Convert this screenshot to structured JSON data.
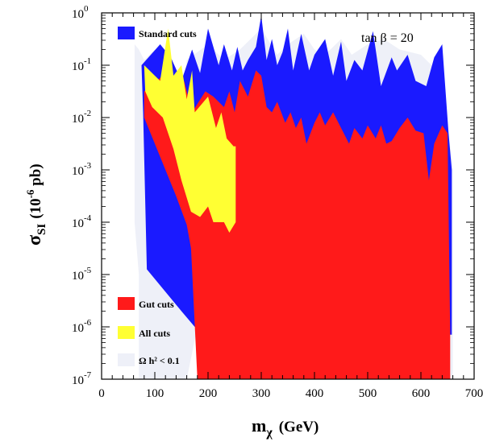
{
  "chart_data": {
    "type": "area",
    "xlabel_main": "m",
    "xlabel_sub": "χ",
    "xlabel_unit": "(GeV)",
    "ylabel_main": "σ",
    "ylabel_sub": "SI",
    "ylabel_unit_pre": "(10",
    "ylabel_unit_exp": "-6",
    "ylabel_unit_post": " pb)",
    "annotation": "tan β = 20",
    "xlim": [
      0,
      700
    ],
    "ylim_log10": [
      -7,
      0
    ],
    "yscale": "log",
    "x_ticks": [
      0,
      100,
      200,
      300,
      400,
      500,
      600,
      700
    ],
    "y_tick_exponents": [
      -7,
      -6,
      -5,
      -4,
      -3,
      -2,
      -1,
      0
    ],
    "y_tick_base": "10",
    "legend": [
      {
        "name": "Standard cuts",
        "color": "#1a1aff"
      },
      {
        "name": "Gut cuts",
        "color": "#ff1a1a"
      },
      {
        "name": "All cuts",
        "color": "#ffff33"
      },
      {
        "name": "Ω h² < 0.1",
        "color": "#eef0f8"
      }
    ],
    "series": [
      {
        "name": "Ω h² < 0.1",
        "color": "#eef0f8",
        "points": [
          [
            62,
            -0.6
          ],
          [
            70,
            -0.7
          ],
          [
            80,
            -0.9
          ],
          [
            100,
            -0.7
          ],
          [
            120,
            -1.0
          ],
          [
            150,
            -1.5
          ],
          [
            160,
            -0.9
          ],
          [
            200,
            -0.6
          ],
          [
            230,
            -0.9
          ],
          [
            260,
            -0.7
          ],
          [
            300,
            -0.3
          ],
          [
            330,
            -0.8
          ],
          [
            350,
            -0.6
          ],
          [
            380,
            -0.4
          ],
          [
            400,
            -0.7
          ],
          [
            420,
            -0.8
          ],
          [
            450,
            -0.5
          ],
          [
            470,
            -0.8
          ],
          [
            500,
            -0.6
          ],
          [
            530,
            -0.5
          ],
          [
            560,
            -0.7
          ],
          [
            600,
            -0.8
          ],
          [
            640,
            -1.2
          ],
          [
            660,
            -3.0
          ],
          [
            660,
            -7.0
          ],
          [
            590,
            -7.0
          ],
          [
            560,
            -6.5
          ],
          [
            520,
            -7.0
          ],
          [
            265,
            -7.0
          ],
          [
            190,
            -5.5
          ],
          [
            160,
            -7.0
          ],
          [
            70,
            -7.0
          ],
          [
            70,
            -5.0
          ],
          [
            62,
            -4.0
          ]
        ]
      },
      {
        "name": "Standard cuts",
        "color": "#1a1aff",
        "points": [
          [
            75,
            -1.0
          ],
          [
            110,
            -0.6
          ],
          [
            130,
            -0.85
          ],
          [
            150,
            -1.3
          ],
          [
            170,
            -0.7
          ],
          [
            185,
            -1.15
          ],
          [
            200,
            -0.3
          ],
          [
            220,
            -1.0
          ],
          [
            230,
            -0.6
          ],
          [
            245,
            -1.1
          ],
          [
            255,
            -0.65
          ],
          [
            265,
            -1.1
          ],
          [
            275,
            -0.9
          ],
          [
            290,
            -0.65
          ],
          [
            300,
            -0.05
          ],
          [
            310,
            -0.9
          ],
          [
            320,
            -0.5
          ],
          [
            330,
            -1.0
          ],
          [
            340,
            -0.75
          ],
          [
            350,
            -0.3
          ],
          [
            360,
            -1.1
          ],
          [
            375,
            -0.4
          ],
          [
            390,
            -1.1
          ],
          [
            400,
            -0.8
          ],
          [
            420,
            -0.5
          ],
          [
            435,
            -1.2
          ],
          [
            450,
            -0.55
          ],
          [
            460,
            -1.3
          ],
          [
            475,
            -0.9
          ],
          [
            490,
            -1.1
          ],
          [
            510,
            -0.35
          ],
          [
            525,
            -1.4
          ],
          [
            545,
            -0.85
          ],
          [
            555,
            -1.1
          ],
          [
            575,
            -0.8
          ],
          [
            590,
            -1.3
          ],
          [
            610,
            -1.4
          ],
          [
            625,
            -0.85
          ],
          [
            640,
            -0.6
          ],
          [
            652,
            -2.3
          ],
          [
            658,
            -3.0
          ],
          [
            658,
            -6.15
          ],
          [
            175,
            -6.0
          ],
          [
            150,
            -5.7
          ],
          [
            85,
            -4.9
          ],
          [
            78,
            -1.9
          ]
        ]
      },
      {
        "name": "Gut cuts",
        "color": "#ff1a1a",
        "points": [
          [
            80,
            -1.5
          ],
          [
            115,
            -1.2
          ],
          [
            140,
            -1.6
          ],
          [
            155,
            -1.3
          ],
          [
            170,
            -1.9
          ],
          [
            195,
            -1.5
          ],
          [
            210,
            -1.6
          ],
          [
            230,
            -1.8
          ],
          [
            240,
            -1.5
          ],
          [
            250,
            -1.9
          ],
          [
            260,
            -1.3
          ],
          [
            275,
            -1.6
          ],
          [
            290,
            -1.1
          ],
          [
            300,
            -1.2
          ],
          [
            310,
            -1.8
          ],
          [
            320,
            -1.9
          ],
          [
            330,
            -1.7
          ],
          [
            345,
            -2.1
          ],
          [
            355,
            -1.9
          ],
          [
            365,
            -2.2
          ],
          [
            375,
            -2.0
          ],
          [
            385,
            -2.5
          ],
          [
            400,
            -2.1
          ],
          [
            410,
            -1.9
          ],
          [
            420,
            -2.15
          ],
          [
            435,
            -1.9
          ],
          [
            450,
            -2.2
          ],
          [
            465,
            -2.5
          ],
          [
            475,
            -2.2
          ],
          [
            490,
            -2.4
          ],
          [
            500,
            -2.15
          ],
          [
            515,
            -2.4
          ],
          [
            525,
            -2.15
          ],
          [
            535,
            -2.5
          ],
          [
            545,
            -2.45
          ],
          [
            560,
            -2.2
          ],
          [
            575,
            -2.0
          ],
          [
            590,
            -2.25
          ],
          [
            605,
            -2.3
          ],
          [
            615,
            -3.2
          ],
          [
            625,
            -2.5
          ],
          [
            640,
            -2.15
          ],
          [
            650,
            -2.3
          ],
          [
            655,
            -6.15
          ],
          [
            655,
            -7.0
          ],
          [
            180,
            -7.0
          ],
          [
            168,
            -4.5
          ],
          [
            160,
            -4.05
          ],
          [
            140,
            -3.5
          ],
          [
            100,
            -2.5
          ],
          [
            80,
            -2.0
          ]
        ]
      },
      {
        "name": "All cuts",
        "color": "#ffff33",
        "points": [
          [
            80,
            -1.0
          ],
          [
            110,
            -1.3
          ],
          [
            125,
            -0.3
          ],
          [
            135,
            -1.2
          ],
          [
            150,
            -1.0
          ],
          [
            160,
            -1.65
          ],
          [
            170,
            -1.1
          ],
          [
            175,
            -1.9
          ],
          [
            200,
            -1.6
          ],
          [
            215,
            -2.2
          ],
          [
            225,
            -1.9
          ],
          [
            235,
            -2.4
          ],
          [
            248,
            -2.55
          ],
          [
            252,
            -2.55
          ],
          [
            252,
            -4.0
          ],
          [
            240,
            -4.2
          ],
          [
            230,
            -4.0
          ],
          [
            210,
            -4.0
          ],
          [
            200,
            -3.7
          ],
          [
            185,
            -3.9
          ],
          [
            168,
            -3.8
          ],
          [
            150,
            -3.2
          ],
          [
            135,
            -2.6
          ],
          [
            115,
            -2.0
          ],
          [
            95,
            -1.8
          ],
          [
            82,
            -1.5
          ]
        ]
      }
    ]
  }
}
